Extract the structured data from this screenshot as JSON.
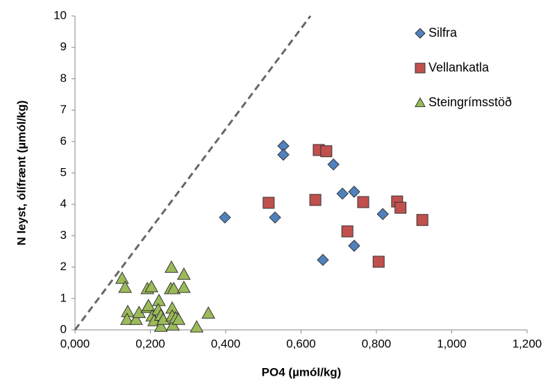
{
  "chart_data": {
    "type": "scatter",
    "x_label": "PO4 (µmól/kg)",
    "y_label": "N leyst, ólífrænt (µmól/kg)",
    "xlim": [
      0,
      1.2
    ],
    "xticks": [
      {
        "value": 0,
        "label": "0,000"
      },
      {
        "value": 0.2,
        "label": "0,200"
      },
      {
        "value": 0.4,
        "label": "0,400"
      },
      {
        "value": 0.6,
        "label": "0,600"
      },
      {
        "value": 0.8,
        "label": "0,800"
      },
      {
        "value": 1.0,
        "label": "1,000"
      },
      {
        "value": 1.2,
        "label": "1,200"
      }
    ],
    "ylim": [
      0,
      10
    ],
    "yticks": [
      0,
      1,
      2,
      3,
      4,
      5,
      6,
      7,
      8,
      9,
      10
    ],
    "legend": "top-right",
    "reference_line": {
      "x": [
        0,
        0.625
      ],
      "y": [
        0,
        10
      ],
      "color": "#666666"
    },
    "series": [
      {
        "name": "Silfra",
        "color": "#4f81bd",
        "marker": "diamond",
        "x": [
          0.398,
          0.531,
          0.553,
          0.553,
          0.686,
          0.71,
          0.741,
          0.817,
          0.741,
          0.658
        ],
        "values": [
          3.58,
          3.58,
          5.86,
          5.58,
          5.27,
          4.34,
          4.4,
          3.69,
          2.68,
          2.23
        ]
      },
      {
        "name": "Vellankatla",
        "color": "#c0504d",
        "marker": "square",
        "x": [
          0.514,
          0.638,
          0.647,
          0.667,
          0.723,
          0.765,
          0.806,
          0.855,
          0.864,
          0.922
        ],
        "values": [
          4.05,
          4.14,
          5.73,
          5.69,
          3.14,
          4.07,
          2.17,
          4.09,
          3.89,
          3.5
        ]
      },
      {
        "name": "Steingrímsstöð",
        "color": "#9bbb59",
        "marker": "triangle",
        "x": [
          0.125,
          0.133,
          0.14,
          0.138,
          0.162,
          0.17,
          0.192,
          0.203,
          0.192,
          0.195,
          0.205,
          0.21,
          0.223,
          0.221,
          0.228,
          0.228,
          0.234,
          0.256,
          0.254,
          0.262,
          0.258,
          0.258,
          0.26,
          0.267,
          0.275,
          0.289,
          0.289,
          0.323,
          0.354
        ],
        "values": [
          1.64,
          1.35,
          0.58,
          0.33,
          0.33,
          0.55,
          1.31,
          1.37,
          0.71,
          0.77,
          0.44,
          0.29,
          0.93,
          0.64,
          0.46,
          0.11,
          0.33,
          1.99,
          1.31,
          1.31,
          0.69,
          0.44,
          0.15,
          0.38,
          0.33,
          1.77,
          1.35,
          0.09,
          0.53
        ]
      }
    ]
  }
}
